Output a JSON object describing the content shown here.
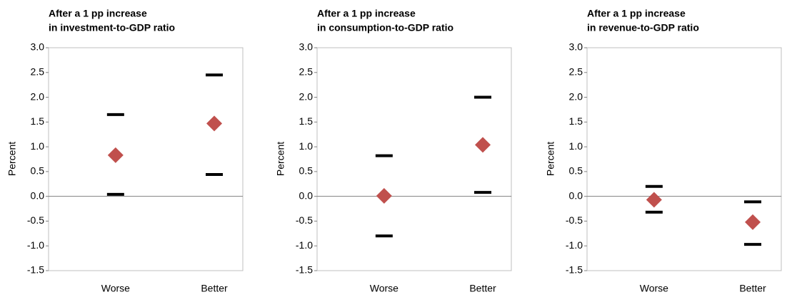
{
  "chart_data": [
    {
      "type": "range-dot",
      "title": [
        "After a 1 pp increase",
        "in investment-to-GDP ratio"
      ],
      "ylabel": "Percent",
      "categories": [
        "Worse",
        "Better"
      ],
      "values": [
        0.83,
        1.47
      ],
      "upper": [
        1.65,
        2.45
      ],
      "lower": [
        0.04,
        0.44
      ],
      "color": "#c0504d",
      "bound_color": "#000000",
      "ylim": [
        -1.5,
        3.0
      ],
      "yticks": [
        {
          "value": -1.5,
          "label": "-1.5"
        },
        {
          "value": -1.0,
          "label": "-1.0"
        },
        {
          "value": -0.5,
          "label": "-0.5"
        },
        {
          "value": 0,
          "label": "0.0"
        },
        0.5,
        {
          "value": 1.0,
          "label": "1.0"
        },
        1.5,
        {
          "value": 2.0,
          "label": "2.0"
        },
        2.5,
        {
          "value": 3.0,
          "label": "3.0"
        }
      ]
    },
    {
      "type": "range-dot",
      "title": [
        "After a 1 pp increase",
        "in consumption-to-GDP ratio"
      ],
      "ylabel": "Percent",
      "categories": [
        "Worse",
        "Better"
      ],
      "values": [
        0.01,
        1.04
      ],
      "upper": [
        0.82,
        2.0
      ],
      "lower": [
        -0.8,
        0.08
      ],
      "color": "#c0504d",
      "bound_color": "#000000",
      "ylim": [
        -1.5,
        3.0
      ],
      "yticks": [
        {
          "value": -1.5,
          "label": "-1.5"
        },
        {
          "value": -1.0,
          "label": "-1.0"
        },
        {
          "value": -0.5,
          "label": "-0.5"
        },
        {
          "value": 0,
          "label": "0.0"
        },
        0.5,
        {
          "value": 1.0,
          "label": "1.0"
        },
        1.5,
        {
          "value": 2.0,
          "label": "2.0"
        },
        2.5,
        {
          "value": 3.0,
          "label": "3.0"
        }
      ]
    },
    {
      "type": "range-dot",
      "title": [
        "After a 1 pp increase",
        "in revenue-to-GDP ratio"
      ],
      "ylabel": "Percent",
      "categories": [
        "Worse",
        "Better"
      ],
      "values": [
        -0.07,
        -0.52
      ],
      "upper": [
        0.2,
        -0.11
      ],
      "lower": [
        -0.32,
        -0.97
      ],
      "color": "#c0504d",
      "bound_color": "#000000",
      "ylim": [
        -1.5,
        3.0
      ],
      "yticks": [
        {
          "value": -1.5,
          "label": "-1.5"
        },
        {
          "value": -1.0,
          "label": "-1.0"
        },
        {
          "value": -0.5,
          "label": "-0.5"
        },
        {
          "value": 0,
          "label": "0.0"
        },
        0.5,
        {
          "value": 1.0,
          "label": "1.0"
        },
        1.5,
        {
          "value": 2.0,
          "label": "2.0"
        },
        2.5,
        {
          "value": 3.0,
          "label": "3.0"
        }
      ]
    }
  ]
}
